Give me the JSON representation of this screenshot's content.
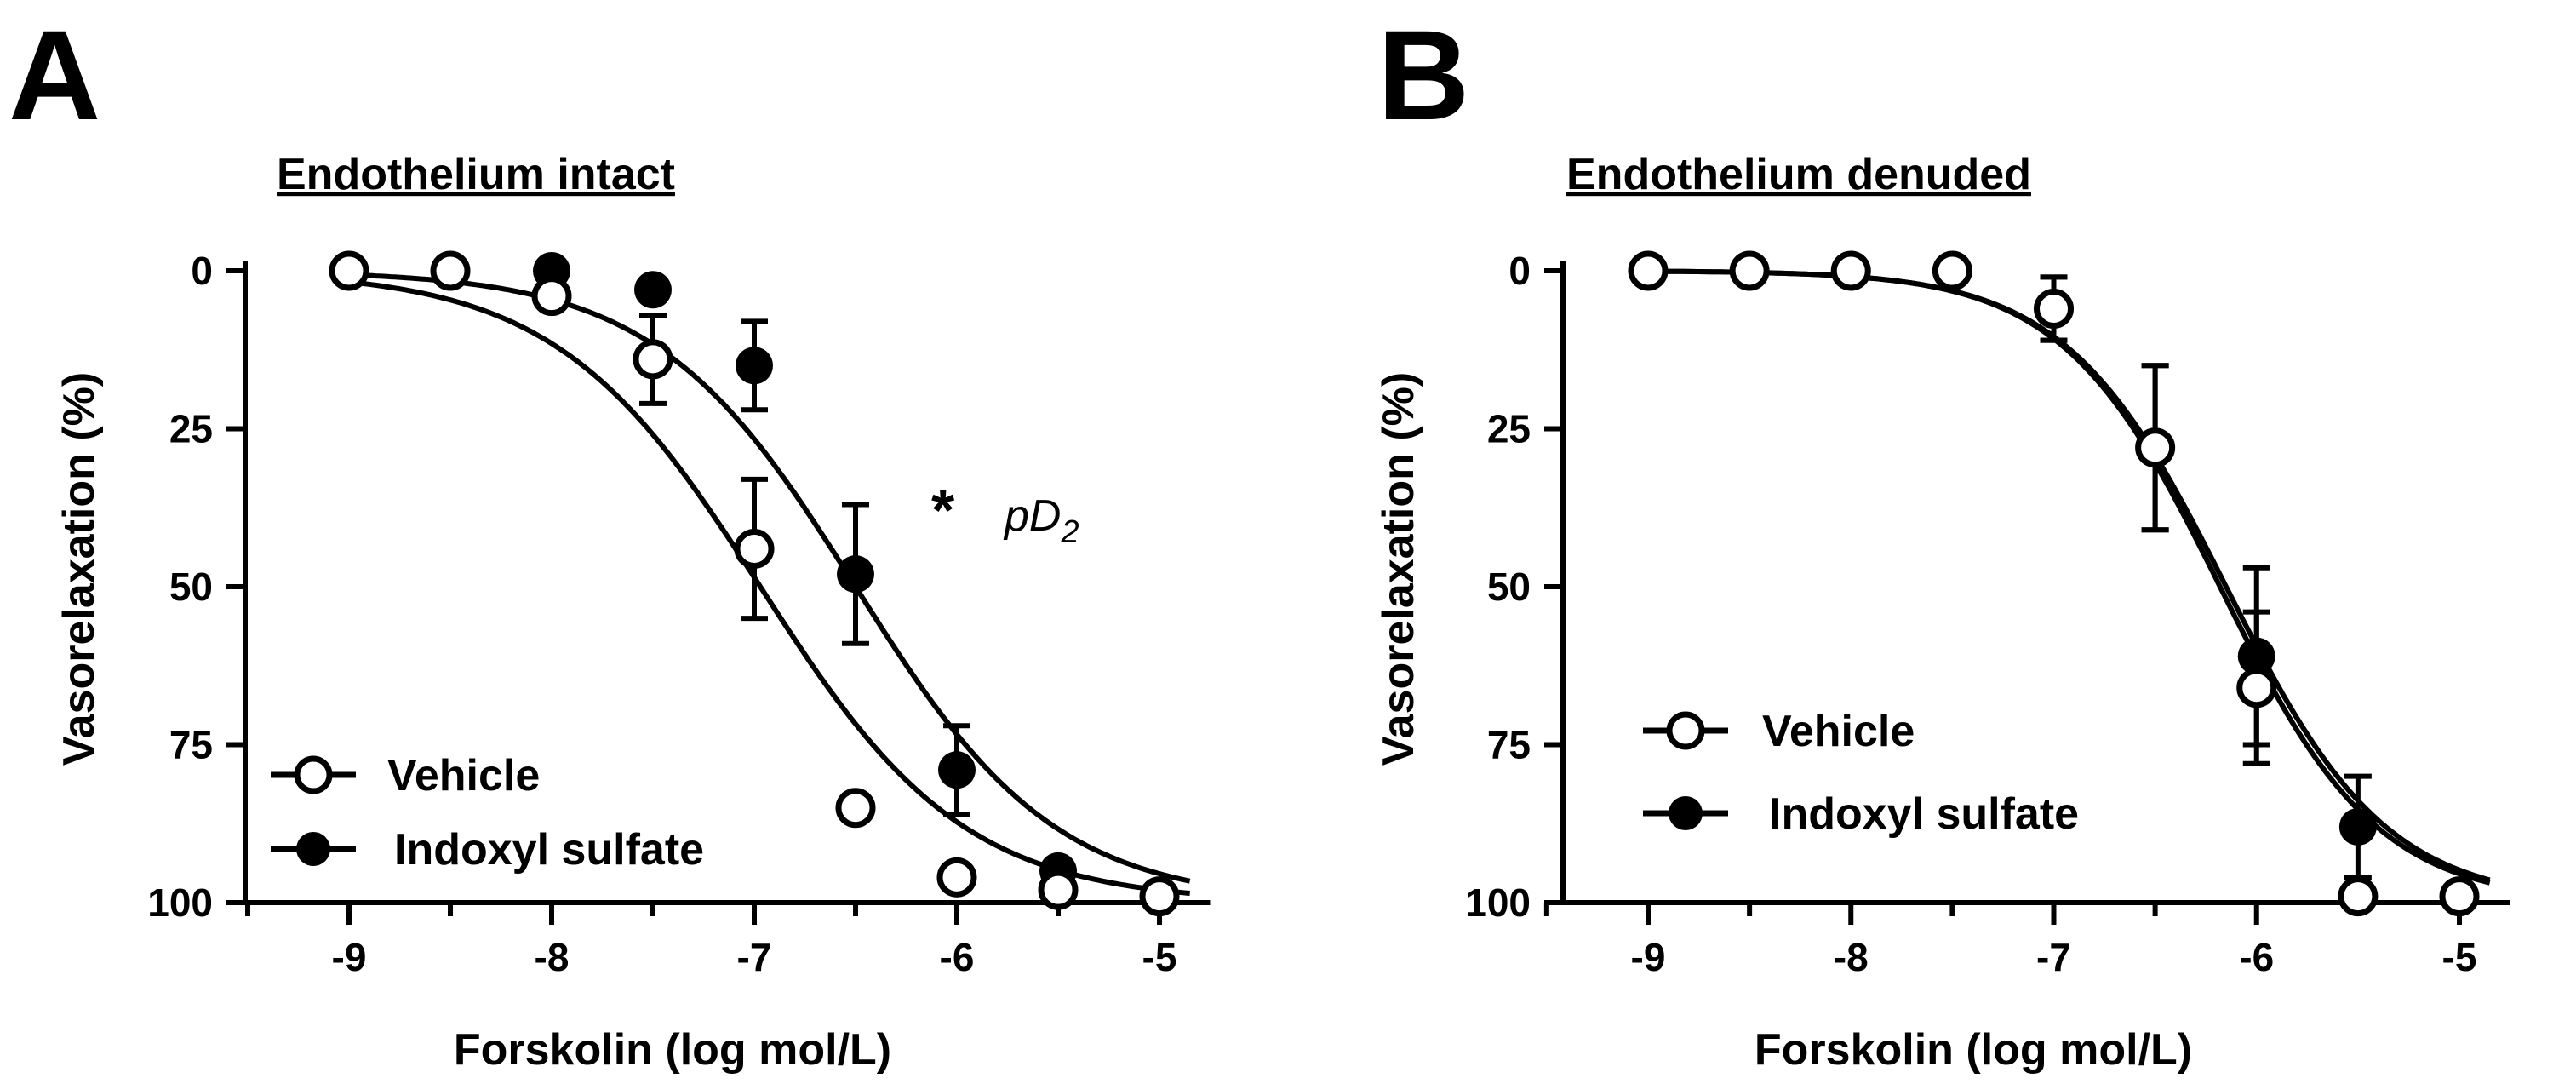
{
  "chart_data": [
    {
      "type": "scatter",
      "panel_label": "A",
      "title": "Endothelium intact",
      "xlabel": "Forskolin (log mol/L)",
      "ylabel": "Vasorelaxation (%)",
      "xlim": [
        -9.5,
        -4.75
      ],
      "ylim": [
        0,
        100
      ],
      "y_inverted": true,
      "xticks": [
        -9,
        -8,
        -7,
        -6,
        -5
      ],
      "yticks": [
        0,
        25,
        50,
        75,
        100
      ],
      "annotation": {
        "star": "*",
        "main": "pD",
        "sub": "2"
      },
      "series": [
        {
          "name": "Vehicle",
          "marker": "open-circle",
          "x": [
            -9,
            -8.5,
            -8,
            -7.5,
            -7,
            -6.5,
            -6,
            -5.5,
            -5
          ],
          "y": [
            0,
            0,
            4,
            14,
            44,
            85,
            96,
            98,
            99
          ],
          "err": [
            0,
            0,
            0,
            7,
            11,
            2,
            0,
            0,
            0
          ],
          "fit": {
            "bottom": 0,
            "top": 100,
            "logEC50": -6.97,
            "hill": 0.86
          }
        },
        {
          "name": "Indoxyl sulfate",
          "marker": "filled-circle",
          "x": [
            -9,
            -8.5,
            -8,
            -7.5,
            -7,
            -6.5,
            -6,
            -5.5,
            -5
          ],
          "y": [
            0,
            0,
            0,
            3,
            15,
            48,
            79,
            95,
            99
          ],
          "err": [
            0,
            0,
            0,
            0,
            7,
            11,
            7,
            0,
            0
          ],
          "fit": {
            "bottom": 0,
            "top": 100,
            "logEC50": -6.5,
            "hill": 0.88
          }
        }
      ]
    },
    {
      "type": "scatter",
      "panel_label": "B",
      "title": "Endothelium denuded",
      "xlabel": "Forskolin (log mol/L)",
      "ylabel": "Vasorelaxation (%)",
      "xlim": [
        -9.5,
        -4.75
      ],
      "ylim": [
        0,
        100
      ],
      "y_inverted": true,
      "xticks": [
        -9,
        -8,
        -7,
        -6,
        -5
      ],
      "yticks": [
        0,
        25,
        50,
        75,
        100
      ],
      "series": [
        {
          "name": "Vehicle",
          "marker": "open-circle",
          "x": [
            -9,
            -8.5,
            -8,
            -7.5,
            -7,
            -6.5,
            -6,
            -5.5,
            -5
          ],
          "y": [
            0,
            0,
            0,
            0,
            6,
            28,
            66,
            99,
            99
          ],
          "err": [
            0,
            0,
            0,
            0,
            5,
            13,
            12,
            0,
            0
          ],
          "fit": {
            "bottom": 0,
            "top": 100,
            "logEC50": -6.18,
            "hill": 1.12
          }
        },
        {
          "name": "Indoxyl sulfate",
          "marker": "filled-circle",
          "x": [
            -9,
            -8.5,
            -8,
            -7.5,
            -7,
            -6.5,
            -6,
            -5.5,
            -5
          ],
          "y": [
            0,
            0,
            0,
            0,
            6,
            28,
            61,
            88,
            99
          ],
          "err": [
            0,
            0,
            0,
            0,
            5,
            13,
            14,
            8,
            0
          ],
          "fit": {
            "bottom": 0,
            "top": 100,
            "logEC50": -6.15,
            "hill": 1.1
          }
        }
      ]
    }
  ]
}
